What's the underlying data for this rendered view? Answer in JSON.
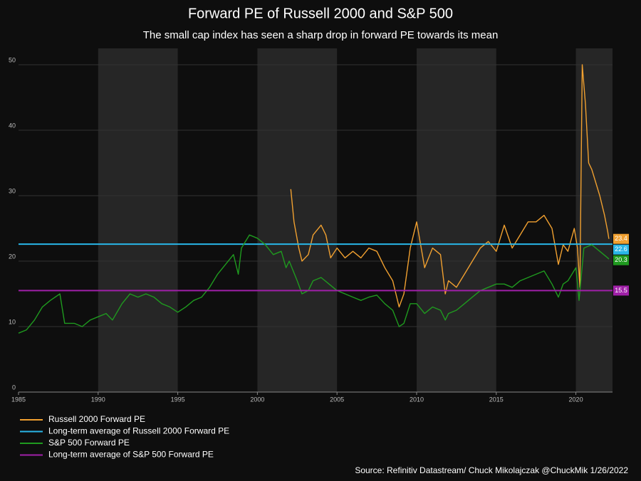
{
  "chart_data": {
    "type": "line",
    "title": "Forward PE of Russell 2000 and S&P 500",
    "subtitle": "The small cap index has seen a sharp drop in forward PE towards its mean",
    "source": "Source: Refinitiv Datastream/ Chuck Mikolajczak @ChuckMik 1/26/2022",
    "xlim": [
      1985,
      2022.3
    ],
    "xticks": [
      1985,
      1990,
      1995,
      2000,
      2005,
      2010,
      2015,
      2020
    ],
    "ylim": [
      0,
      52.5
    ],
    "yticks": [
      0,
      10,
      20,
      30,
      40,
      50
    ],
    "grid": true,
    "legend": "bottom-left",
    "series": [
      {
        "name": "Russell 2000 Forward PE",
        "color": "#f0a030",
        "x": [
          2002.1,
          2002.3,
          2002.6,
          2002.8,
          2003.2,
          2003.5,
          2004,
          2004.3,
          2004.6,
          2005,
          2005.5,
          2006,
          2006.5,
          2007,
          2007.5,
          2008,
          2008.5,
          2008.9,
          2009.2,
          2009.6,
          2010,
          2010.5,
          2011,
          2011.5,
          2011.8,
          2012,
          2012.5,
          2013,
          2013.5,
          2014,
          2014.5,
          2015,
          2015.5,
          2016,
          2016.5,
          2017,
          2017.5,
          2018,
          2018.5,
          2018.9,
          2019.2,
          2019.5,
          2019.9,
          2020.1,
          2020.25,
          2020.4,
          2020.6,
          2020.8,
          2021,
          2021.5,
          2021.8,
          2022,
          2022.07
        ],
        "values": [
          31,
          26,
          22,
          20,
          21,
          24,
          25.5,
          24,
          20.5,
          22,
          20.5,
          21.5,
          20.5,
          22,
          21.5,
          19,
          17,
          13,
          15,
          22,
          26,
          19,
          22,
          21,
          15,
          17,
          16,
          18,
          20,
          22,
          23,
          21.5,
          25.5,
          22,
          24,
          26,
          26,
          27,
          25,
          19.5,
          22.5,
          21.5,
          25,
          22,
          16,
          50,
          44,
          35,
          34,
          30,
          27,
          24.5,
          23.4
        ]
      },
      {
        "name": "Long-term average of Russell 2000 Forward PE",
        "color": "#29b6e8",
        "value": 22.6
      },
      {
        "name": "S&P 500 Forward PE",
        "color": "#1f9a1f",
        "x": [
          1985,
          1985.5,
          1986,
          1986.5,
          1987,
          1987.6,
          1987.9,
          1988.5,
          1989,
          1989.5,
          1990,
          1990.5,
          1990.9,
          1991.5,
          1992,
          1992.5,
          1993,
          1993.5,
          1994,
          1994.5,
          1995,
          1995.5,
          1996,
          1996.5,
          1997,
          1997.5,
          1998,
          1998.5,
          1998.8,
          1999,
          1999.5,
          2000,
          2000.5,
          2001,
          2001.5,
          2001.8,
          2002,
          2002.5,
          2002.8,
          2003.2,
          2003.5,
          2004,
          2004.5,
          2005,
          2005.5,
          2006,
          2006.5,
          2007,
          2007.5,
          2008,
          2008.5,
          2008.9,
          2009.2,
          2009.6,
          2010,
          2010.5,
          2011,
          2011.5,
          2011.8,
          2012,
          2012.5,
          2013,
          2013.5,
          2014,
          2014.5,
          2015,
          2015.5,
          2016,
          2016.5,
          2017,
          2017.5,
          2018,
          2018.5,
          2018.9,
          2019.2,
          2019.5,
          2020,
          2020.2,
          2020.5,
          2021,
          2021.5,
          2022,
          2022.07
        ],
        "values": [
          9,
          9.5,
          11,
          13,
          14,
          15,
          10.5,
          10.5,
          10,
          11,
          11.5,
          12,
          11,
          13.5,
          15,
          14.5,
          15,
          14.5,
          13.5,
          13,
          12.2,
          13,
          14,
          14.5,
          16,
          18,
          19.5,
          21,
          18,
          22,
          24,
          23.5,
          22.5,
          21,
          21.5,
          19,
          20,
          17,
          15,
          15.5,
          17,
          17.5,
          16.5,
          15.5,
          15,
          14.5,
          14,
          14.5,
          14.8,
          13.5,
          12.5,
          10,
          10.5,
          13.5,
          13.5,
          12,
          13,
          12.5,
          11,
          12,
          12.5,
          13.5,
          14.5,
          15.5,
          16,
          16.5,
          16.5,
          16,
          17,
          17.5,
          18,
          18.5,
          16.5,
          14.5,
          16.5,
          17,
          19,
          14,
          22,
          22.5,
          21.5,
          20.5,
          20.3
        ]
      },
      {
        "name": "Long-term average of S&P 500 Forward PE",
        "color": "#a020a8",
        "value": 15.5
      }
    ]
  }
}
